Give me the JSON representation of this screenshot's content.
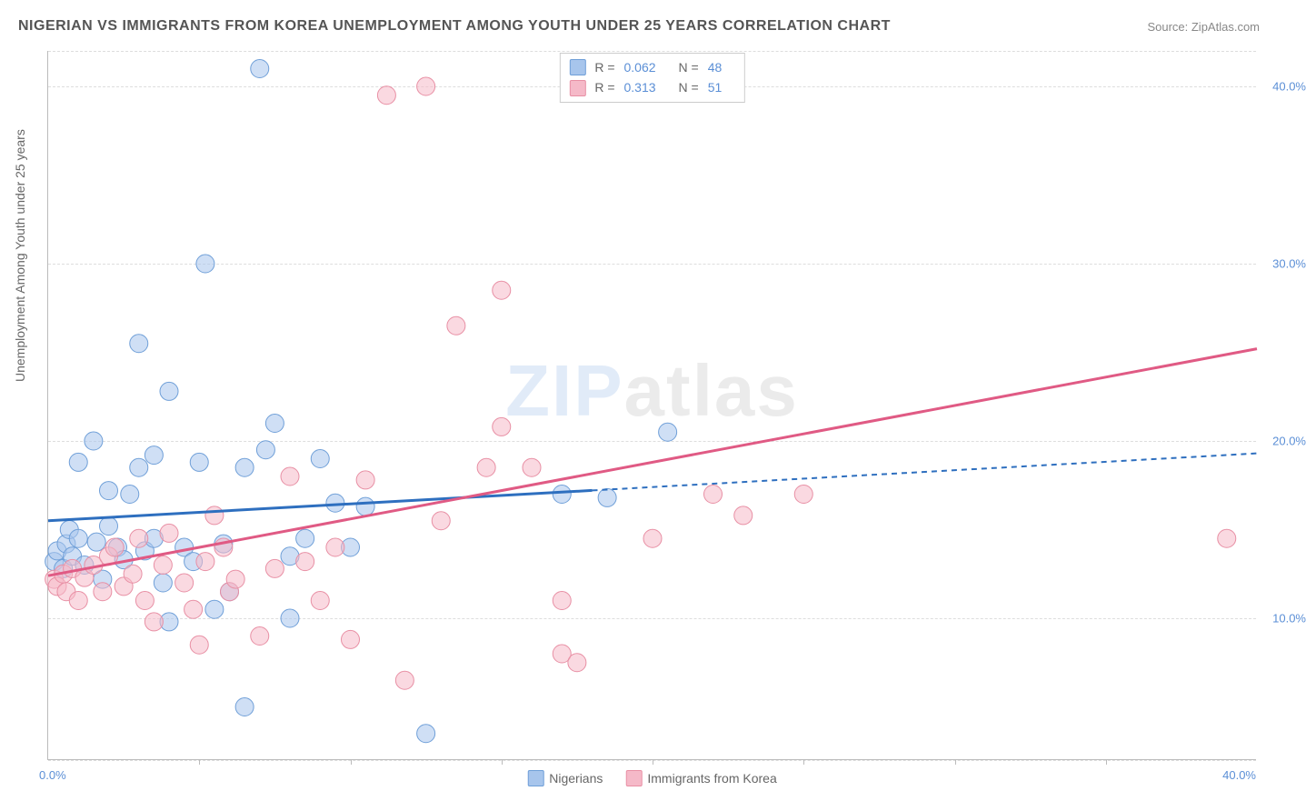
{
  "title": "NIGERIAN VS IMMIGRANTS FROM KOREA UNEMPLOYMENT AMONG YOUTH UNDER 25 YEARS CORRELATION CHART",
  "source": "Source: ZipAtlas.com",
  "ylabel": "Unemployment Among Youth under 25 years",
  "watermark_a": "ZIP",
  "watermark_b": "atlas",
  "chart": {
    "type": "scatter",
    "xlim": [
      0,
      40
    ],
    "ylim": [
      2,
      42
    ],
    "x_ticks_labeled": [
      0,
      40
    ],
    "x_ticks_minor": [
      5,
      10,
      15,
      20,
      25,
      30,
      35
    ],
    "y_ticks": [
      10,
      20,
      30,
      40
    ],
    "y_grid": [
      2,
      10,
      20,
      30,
      40,
      42
    ],
    "background_color": "#ffffff",
    "grid_color": "#dddddd",
    "axis_color": "#bbbbbb",
    "tick_label_color": "#5b8fd6",
    "point_radius": 10,
    "point_opacity": 0.55,
    "series": [
      {
        "name": "Nigerians",
        "color_fill": "#a7c5ec",
        "color_stroke": "#6f9fd8",
        "R": "0.062",
        "N": "48",
        "trend": {
          "slope": 0.095,
          "intercept": 15.5,
          "solid_x_end": 18,
          "color": "#2e6fbf",
          "width": 3
        },
        "points": [
          [
            0.2,
            13.2
          ],
          [
            0.3,
            13.8
          ],
          [
            0.5,
            12.8
          ],
          [
            0.6,
            14.2
          ],
          [
            0.7,
            15.0
          ],
          [
            0.8,
            13.5
          ],
          [
            1.0,
            14.5
          ],
          [
            1.0,
            18.8
          ],
          [
            1.2,
            13.0
          ],
          [
            1.5,
            20.0
          ],
          [
            1.6,
            14.3
          ],
          [
            1.8,
            12.2
          ],
          [
            2.0,
            15.2
          ],
          [
            2.0,
            17.2
          ],
          [
            2.3,
            14.0
          ],
          [
            2.5,
            13.3
          ],
          [
            2.7,
            17.0
          ],
          [
            3.0,
            18.5
          ],
          [
            3.0,
            25.5
          ],
          [
            3.2,
            13.8
          ],
          [
            3.5,
            14.5
          ],
          [
            3.5,
            19.2
          ],
          [
            3.8,
            12.0
          ],
          [
            4.0,
            22.8
          ],
          [
            4.0,
            9.8
          ],
          [
            4.5,
            14.0
          ],
          [
            4.8,
            13.2
          ],
          [
            5.0,
            18.8
          ],
          [
            5.2,
            30.0
          ],
          [
            5.5,
            10.5
          ],
          [
            5.8,
            14.2
          ],
          [
            6.0,
            11.5
          ],
          [
            6.5,
            18.5
          ],
          [
            6.5,
            5.0
          ],
          [
            7.0,
            41.0
          ],
          [
            7.2,
            19.5
          ],
          [
            7.5,
            21.0
          ],
          [
            8.0,
            13.5
          ],
          [
            8.0,
            10.0
          ],
          [
            8.5,
            14.5
          ],
          [
            9.0,
            19.0
          ],
          [
            9.5,
            16.5
          ],
          [
            10.0,
            14.0
          ],
          [
            10.5,
            16.3
          ],
          [
            12.5,
            3.5
          ],
          [
            17.0,
            17.0
          ],
          [
            18.5,
            16.8
          ],
          [
            20.5,
            20.5
          ]
        ]
      },
      {
        "name": "Immigrants from Korea",
        "color_fill": "#f5b9c8",
        "color_stroke": "#e88fa4",
        "R": "0.313",
        "N": "51",
        "trend": {
          "slope": 0.32,
          "intercept": 12.4,
          "solid_x_end": 40,
          "color": "#e05a84",
          "width": 3
        },
        "points": [
          [
            0.2,
            12.2
          ],
          [
            0.3,
            11.8
          ],
          [
            0.5,
            12.5
          ],
          [
            0.6,
            11.5
          ],
          [
            0.8,
            12.8
          ],
          [
            1.0,
            11.0
          ],
          [
            1.2,
            12.3
          ],
          [
            1.5,
            13.0
          ],
          [
            1.8,
            11.5
          ],
          [
            2.0,
            13.5
          ],
          [
            2.2,
            14.0
          ],
          [
            2.5,
            11.8
          ],
          [
            2.8,
            12.5
          ],
          [
            3.0,
            14.5
          ],
          [
            3.2,
            11.0
          ],
          [
            3.5,
            9.8
          ],
          [
            3.8,
            13.0
          ],
          [
            4.0,
            14.8
          ],
          [
            4.5,
            12.0
          ],
          [
            4.8,
            10.5
          ],
          [
            5.0,
            8.5
          ],
          [
            5.2,
            13.2
          ],
          [
            5.5,
            15.8
          ],
          [
            5.8,
            14.0
          ],
          [
            6.0,
            11.5
          ],
          [
            6.2,
            12.2
          ],
          [
            7.0,
            9.0
          ],
          [
            7.5,
            12.8
          ],
          [
            8.0,
            18.0
          ],
          [
            8.5,
            13.2
          ],
          [
            9.0,
            11.0
          ],
          [
            9.5,
            14.0
          ],
          [
            10.0,
            8.8
          ],
          [
            10.5,
            17.8
          ],
          [
            11.2,
            39.5
          ],
          [
            11.8,
            6.5
          ],
          [
            12.5,
            40.0
          ],
          [
            13.0,
            15.5
          ],
          [
            13.5,
            26.5
          ],
          [
            14.5,
            18.5
          ],
          [
            15.0,
            20.8
          ],
          [
            15.0,
            28.5
          ],
          [
            16.0,
            18.5
          ],
          [
            17.0,
            8.0
          ],
          [
            17.0,
            11.0
          ],
          [
            17.5,
            7.5
          ],
          [
            20.0,
            14.5
          ],
          [
            22.0,
            17.0
          ],
          [
            23.0,
            15.8
          ],
          [
            25.0,
            17.0
          ],
          [
            39.0,
            14.5
          ]
        ]
      }
    ]
  },
  "legend_top": {
    "r_label": "R =",
    "n_label": "N ="
  },
  "legend_bottom": {
    "a": "Nigerians",
    "b": "Immigrants from Korea"
  },
  "xtick_left": "0.0%",
  "xtick_right": "40.0%"
}
